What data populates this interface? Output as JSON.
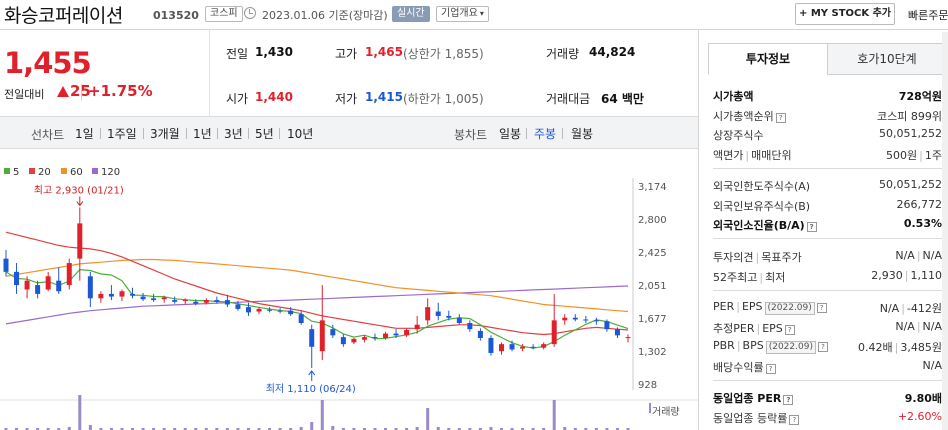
{
  "header": {
    "company": "화승코퍼레이션",
    "code": "013520",
    "market": "코스피",
    "date": "2023.01.06 기준(장마감)",
    "realtime": "실시간",
    "overview": "기업개요",
    "mystock": "+ MY STOCK 추가",
    "quick": "빠른주문"
  },
  "price": {
    "current": "1,455",
    "change_label": "전일대비",
    "change": "25",
    "change_pct": "+1.75%"
  },
  "stats": {
    "prev_label": "전일",
    "prev": "1,430",
    "high_label": "고가",
    "high": "1,465",
    "upper_limit": "(상한가 1,855)",
    "volume_label": "거래량",
    "volume": "44,824",
    "open_label": "시가",
    "open": "1,440",
    "low_label": "저가",
    "low": "1,415",
    "lower_limit": "(하한가 1,005)",
    "amount_label": "거래대금",
    "amount": "64 백만"
  },
  "toolbar": {
    "line_label": "선차트",
    "line_periods": [
      "1일",
      "1주일",
      "3개월",
      "1년",
      "3년",
      "5년",
      "10년"
    ],
    "candle_label": "봉차트",
    "candle_periods": [
      "일봉",
      "주봉",
      "월봉"
    ],
    "active": "주봉"
  },
  "chart_data": {
    "type": "candlestick",
    "moving_averages": [
      {
        "name": "5",
        "color": "#4caf3c"
      },
      {
        "name": "20",
        "color": "#e04040"
      },
      {
        "name": "60",
        "color": "#f0922a"
      },
      {
        "name": "120",
        "color": "#9a6ad0"
      }
    ],
    "y_ticks": [
      3174,
      2800,
      2425,
      2051,
      1677,
      1302,
      928
    ],
    "ylim": [
      928,
      3174
    ],
    "annotations": {
      "high": "최고 2,930 (01/21)",
      "low": "최저 1,110 (06/24)"
    },
    "high_value": 2930,
    "low_value": 1110,
    "volume_label": "거래량",
    "candles": [
      {
        "o": 2350,
        "h": 2450,
        "l": 2150,
        "c": 2200
      },
      {
        "o": 2200,
        "h": 2300,
        "l": 1950,
        "c": 2050
      },
      {
        "o": 2000,
        "h": 2150,
        "l": 1900,
        "c": 2100
      },
      {
        "o": 2050,
        "h": 2100,
        "l": 1900,
        "c": 1950
      },
      {
        "o": 2000,
        "h": 2200,
        "l": 1980,
        "c": 2150
      },
      {
        "o": 2100,
        "h": 2250,
        "l": 1950,
        "c": 1980
      },
      {
        "o": 2050,
        "h": 2350,
        "l": 2000,
        "c": 2300
      },
      {
        "o": 2350,
        "h": 2930,
        "l": 2100,
        "c": 2750
      },
      {
        "o": 2150,
        "h": 2200,
        "l": 1800,
        "c": 1900
      },
      {
        "o": 1900,
        "h": 1980,
        "l": 1850,
        "c": 1950
      },
      {
        "o": 1950,
        "h": 2050,
        "l": 1880,
        "c": 1920
      },
      {
        "o": 1920,
        "h": 2000,
        "l": 1870,
        "c": 1980
      },
      {
        "o": 1950,
        "h": 2020,
        "l": 1900,
        "c": 1930
      },
      {
        "o": 1920,
        "h": 1960,
        "l": 1870,
        "c": 1890
      },
      {
        "o": 1900,
        "h": 1950,
        "l": 1860,
        "c": 1880
      },
      {
        "o": 1890,
        "h": 1930,
        "l": 1850,
        "c": 1910
      },
      {
        "o": 1880,
        "h": 1920,
        "l": 1840,
        "c": 1860
      },
      {
        "o": 1870,
        "h": 1900,
        "l": 1830,
        "c": 1880
      },
      {
        "o": 1860,
        "h": 1890,
        "l": 1820,
        "c": 1840
      },
      {
        "o": 1850,
        "h": 1900,
        "l": 1830,
        "c": 1880
      },
      {
        "o": 1880,
        "h": 1920,
        "l": 1840,
        "c": 1860
      },
      {
        "o": 1880,
        "h": 1940,
        "l": 1800,
        "c": 1830
      },
      {
        "o": 1830,
        "h": 1870,
        "l": 1760,
        "c": 1780
      },
      {
        "o": 1800,
        "h": 1850,
        "l": 1700,
        "c": 1740
      },
      {
        "o": 1750,
        "h": 1800,
        "l": 1720,
        "c": 1780
      },
      {
        "o": 1770,
        "h": 1800,
        "l": 1740,
        "c": 1760
      },
      {
        "o": 1760,
        "h": 1790,
        "l": 1730,
        "c": 1750
      },
      {
        "o": 1760,
        "h": 1800,
        "l": 1700,
        "c": 1720
      },
      {
        "o": 1720,
        "h": 1760,
        "l": 1600,
        "c": 1620
      },
      {
        "o": 1550,
        "h": 1600,
        "l": 1110,
        "c": 1350
      },
      {
        "o": 1300,
        "h": 2050,
        "l": 1200,
        "c": 1650
      },
      {
        "o": 1550,
        "h": 1600,
        "l": 1450,
        "c": 1480
      },
      {
        "o": 1460,
        "h": 1490,
        "l": 1350,
        "c": 1380
      },
      {
        "o": 1400,
        "h": 1450,
        "l": 1380,
        "c": 1440
      },
      {
        "o": 1430,
        "h": 1480,
        "l": 1400,
        "c": 1460
      },
      {
        "o": 1460,
        "h": 1500,
        "l": 1420,
        "c": 1450
      },
      {
        "o": 1450,
        "h": 1520,
        "l": 1430,
        "c": 1500
      },
      {
        "o": 1500,
        "h": 1550,
        "l": 1450,
        "c": 1480
      },
      {
        "o": 1480,
        "h": 1560,
        "l": 1460,
        "c": 1540
      },
      {
        "o": 1550,
        "h": 1700,
        "l": 1500,
        "c": 1600
      },
      {
        "o": 1650,
        "h": 1900,
        "l": 1600,
        "c": 1800
      },
      {
        "o": 1750,
        "h": 1850,
        "l": 1650,
        "c": 1700
      },
      {
        "o": 1700,
        "h": 1760,
        "l": 1650,
        "c": 1680
      },
      {
        "o": 1680,
        "h": 1720,
        "l": 1600,
        "c": 1620
      },
      {
        "o": 1620,
        "h": 1650,
        "l": 1520,
        "c": 1550
      },
      {
        "o": 1530,
        "h": 1560,
        "l": 1420,
        "c": 1450
      },
      {
        "o": 1450,
        "h": 1480,
        "l": 1250,
        "c": 1280
      },
      {
        "o": 1300,
        "h": 1400,
        "l": 1260,
        "c": 1380
      },
      {
        "o": 1380,
        "h": 1420,
        "l": 1300,
        "c": 1320
      },
      {
        "o": 1330,
        "h": 1380,
        "l": 1300,
        "c": 1350
      },
      {
        "o": 1350,
        "h": 1380,
        "l": 1320,
        "c": 1340
      },
      {
        "o": 1340,
        "h": 1400,
        "l": 1320,
        "c": 1380
      },
      {
        "o": 1380,
        "h": 1950,
        "l": 1350,
        "c": 1650
      },
      {
        "o": 1650,
        "h": 1720,
        "l": 1600,
        "c": 1680
      },
      {
        "o": 1680,
        "h": 1720,
        "l": 1640,
        "c": 1660
      },
      {
        "o": 1660,
        "h": 1700,
        "l": 1620,
        "c": 1650
      },
      {
        "o": 1650,
        "h": 1680,
        "l": 1600,
        "c": 1640
      },
      {
        "o": 1640,
        "h": 1660,
        "l": 1520,
        "c": 1550
      },
      {
        "o": 1550,
        "h": 1570,
        "l": 1450,
        "c": 1480
      },
      {
        "o": 1450,
        "h": 1490,
        "l": 1400,
        "c": 1460
      }
    ],
    "ma20": [
      2650,
      2620,
      2590,
      2560,
      2530,
      2500,
      2480,
      2470,
      2460,
      2440,
      2410,
      2370,
      2320,
      2270,
      2220,
      2170,
      2120,
      2080,
      2040,
      2000,
      1960,
      1930,
      1900,
      1870,
      1840,
      1820,
      1800,
      1780,
      1760,
      1730,
      1700,
      1680,
      1660,
      1640,
      1620,
      1600,
      1580,
      1560,
      1560,
      1560,
      1570,
      1580,
      1590,
      1600,
      1600,
      1590,
      1570,
      1550,
      1530,
      1510,
      1500,
      1490,
      1500,
      1520,
      1540,
      1560,
      1570,
      1560,
      1550,
      1540
    ],
    "ma60": [
      2150,
      2170,
      2190,
      2210,
      2230,
      2250,
      2270,
      2290,
      2300,
      2310,
      2320,
      2330,
      2335,
      2340,
      2340,
      2335,
      2330,
      2320,
      2310,
      2300,
      2290,
      2280,
      2270,
      2260,
      2250,
      2240,
      2230,
      2220,
      2200,
      2180,
      2160,
      2140,
      2120,
      2100,
      2080,
      2060,
      2040,
      2020,
      2010,
      2000,
      1990,
      1980,
      1970,
      1960,
      1950,
      1940,
      1930,
      1910,
      1890,
      1870,
      1850,
      1830,
      1820,
      1810,
      1800,
      1790,
      1780,
      1770,
      1760,
      1750
    ],
    "ma120": [
      1610,
      1630,
      1650,
      1670,
      1690,
      1710,
      1730,
      1745,
      1760,
      1770,
      1780,
      1790,
      1800,
      1810,
      1815,
      1820,
      1825,
      1830,
      1835,
      1840,
      1845,
      1850,
      1855,
      1860,
      1865,
      1870,
      1875,
      1880,
      1885,
      1890,
      1895,
      1900,
      1905,
      1910,
      1915,
      1920,
      1925,
      1930,
      1935,
      1940,
      1945,
      1950,
      1955,
      1960,
      1965,
      1970,
      1975,
      1980,
      1985,
      1990,
      1995,
      2000,
      2005,
      2010,
      2015,
      2020,
      2025,
      2030,
      2035,
      2040
    ],
    "volume": [
      2,
      2,
      2,
      2,
      2,
      2,
      3,
      35,
      5,
      2,
      2,
      2,
      2,
      2,
      2,
      2,
      2,
      2,
      2,
      2,
      2,
      2,
      2,
      2,
      2,
      2,
      2,
      2,
      3,
      8,
      30,
      4,
      2,
      2,
      2,
      2,
      2,
      2,
      2,
      3,
      22,
      3,
      2,
      2,
      2,
      2,
      3,
      2,
      2,
      2,
      2,
      2,
      30,
      3,
      2,
      2,
      2,
      2,
      2,
      2
    ]
  },
  "panel": {
    "tabs": [
      "투자정보",
      "호가10단계"
    ],
    "rows1": [
      {
        "k": "시가총액",
        "v": "728억원",
        "strong": true
      },
      {
        "k": "시가총액순위",
        "v": "코스피 899위"
      },
      {
        "k": "상장주식수",
        "v": "50,051,252"
      },
      {
        "k": "액면가",
        "k2": "매매단위",
        "v": "500원",
        "v2": "1주"
      }
    ],
    "rows2": [
      {
        "k": "외국인한도주식수(A)",
        "v": "50,051,252"
      },
      {
        "k": "외국인보유주식수(B)",
        "v": "266,772"
      },
      {
        "k": "외국인소진율(B/A)",
        "v": "0.53%",
        "strong": true
      }
    ],
    "rows3": [
      {
        "k": "투자의견",
        "k2": "목표주가",
        "v": "N/A",
        "v2": "N/A"
      },
      {
        "k": "52주최고",
        "k2": "최저",
        "v": "2,930",
        "v2": "1,110"
      }
    ],
    "rows4": [
      {
        "k": "PER",
        "k2": "EPS",
        "paren": "(2022.09)",
        "v": "N/A",
        "v2": "-412원"
      },
      {
        "k": "추정PER",
        "k2": "EPS",
        "v": "N/A",
        "v2": "N/A"
      },
      {
        "k": "PBR",
        "k2": "BPS",
        "paren": "(2022.09)",
        "v": "0.42배",
        "v2": "3,485원"
      },
      {
        "k": "배당수익률",
        "v": "N/A"
      }
    ],
    "rows5": [
      {
        "k": "동일업종 PER",
        "v": "9.80배",
        "strong": true
      },
      {
        "k": "동일업종 등락률",
        "v": "+2.60%",
        "red": true
      }
    ]
  }
}
